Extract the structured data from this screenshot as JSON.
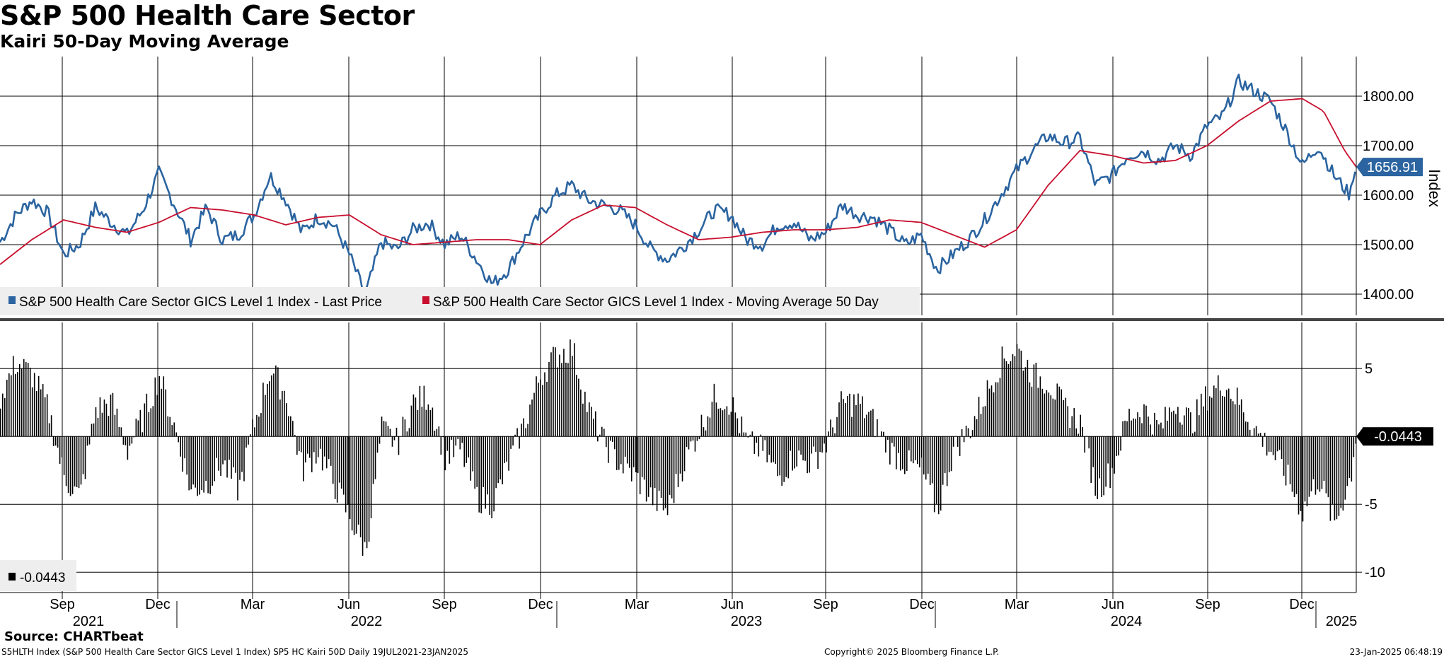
{
  "header": {
    "title": "S&P 500 Health Care Sector",
    "subtitle": "Kairi 50-Day Moving Average"
  },
  "footer": {
    "source": "Source: CHARTbeat",
    "ticker_info": "S5HLTH Index (S&P 500 Health Care Sector GICS Level 1 Index) SP5 HC Kairi 50D  Daily 19JUL2021-23JAN2025",
    "copyright": "Copyright© 2025 Bloomberg Finance L.P.",
    "timestamp": "23-Jan-2025 06:48:19"
  },
  "colors": {
    "price": "#2b64a0",
    "ma": "#c8102e",
    "bars": "#000000",
    "grid": "#000000",
    "label_fill": "#2b64a0"
  },
  "chart_data": [
    {
      "type": "line",
      "title": "S&P 500 Health Care Sector",
      "ylabel": "Index",
      "ylim": [
        1360,
        1880
      ],
      "yticks": [
        1400,
        1500,
        1600,
        1700,
        1800
      ],
      "ytick_labels": [
        "1400.00",
        "1500.00",
        "1600.00",
        "1700.00",
        "1800.00"
      ],
      "x_months": [
        "Sep",
        "Dec",
        "Mar",
        "Jun",
        "Sep",
        "Dec",
        "Mar",
        "Jun",
        "Sep",
        "Dec",
        "Mar",
        "Jun",
        "Sep",
        "Dec"
      ],
      "x_years": [
        "2021",
        "2022",
        "2023",
        "2024",
        "2025"
      ],
      "last_value_label": "1656.91",
      "legend_position": "bottom-left",
      "series": [
        {
          "name": "S&P 500 Health Care Sector GICS Level 1 Index - Last Price",
          "x_days": [
            0,
            15,
            30,
            45,
            60,
            75,
            90,
            105,
            120,
            135,
            150,
            165,
            180,
            195,
            210,
            225,
            240,
            255,
            270,
            285,
            300,
            315,
            330,
            345,
            360,
            375,
            390,
            405,
            420,
            435,
            450,
            465,
            480,
            495,
            510,
            525,
            540,
            555,
            570,
            585,
            600,
            615,
            630,
            645,
            660,
            675,
            690,
            705,
            720,
            735,
            750,
            765,
            780,
            795,
            810,
            825,
            840,
            855,
            870,
            885,
            900,
            915,
            930,
            945,
            960,
            975,
            990,
            1005,
            1020,
            1035,
            1050,
            1065,
            1080,
            1095,
            1110,
            1125,
            1140,
            1155,
            1170,
            1185,
            1200,
            1215,
            1230,
            1245,
            1260,
            1275,
            1281
          ],
          "values": [
            1505,
            1560,
            1590,
            1565,
            1480,
            1500,
            1575,
            1545,
            1520,
            1570,
            1645,
            1580,
            1510,
            1575,
            1510,
            1520,
            1560,
            1640,
            1590,
            1525,
            1555,
            1540,
            1480,
            1398,
            1505,
            1490,
            1530,
            1545,
            1500,
            1520,
            1470,
            1420,
            1450,
            1510,
            1560,
            1600,
            1620,
            1590,
            1580,
            1570,
            1540,
            1490,
            1470,
            1495,
            1530,
            1570,
            1560,
            1510,
            1500,
            1540,
            1545,
            1510,
            1525,
            1580,
            1560,
            1555,
            1530,
            1500,
            1520,
            1450,
            1480,
            1510,
            1550,
            1600,
            1650,
            1690,
            1720,
            1705,
            1715,
            1620,
            1640,
            1680,
            1690,
            1670,
            1700,
            1680,
            1740,
            1760,
            1830,
            1810,
            1790,
            1730,
            1660,
            1700,
            1640,
            1600,
            1656.91
          ]
        },
        {
          "name": "S&P 500 Health Care Sector GICS Level 1 Index - Moving Average 50 Day",
          "x_days": [
            0,
            30,
            60,
            90,
            120,
            150,
            180,
            210,
            240,
            270,
            300,
            330,
            360,
            390,
            420,
            450,
            480,
            510,
            540,
            570,
            600,
            630,
            660,
            690,
            720,
            750,
            780,
            810,
            840,
            870,
            900,
            930,
            960,
            990,
            1020,
            1050,
            1080,
            1110,
            1140,
            1170,
            1200,
            1230,
            1250,
            1270,
            1281
          ],
          "values": [
            1460,
            1510,
            1550,
            1535,
            1525,
            1545,
            1575,
            1570,
            1560,
            1540,
            1555,
            1560,
            1520,
            1500,
            1505,
            1510,
            1510,
            1500,
            1550,
            1580,
            1575,
            1540,
            1510,
            1515,
            1525,
            1530,
            1530,
            1535,
            1550,
            1545,
            1520,
            1495,
            1530,
            1620,
            1690,
            1680,
            1665,
            1670,
            1700,
            1750,
            1790,
            1795,
            1770,
            1690,
            1657
          ]
        }
      ]
    },
    {
      "type": "bar",
      "title": "Kairi 50-Day Moving Average",
      "ylim": [
        -11.5,
        8.5
      ],
      "yticks": [
        -10,
        -5,
        5
      ],
      "ytick_labels": [
        "-10",
        "-5",
        "5"
      ],
      "last_value_label": "-0.0443",
      "legend": "-0.0443",
      "legend_position": "bottom-left",
      "series": [
        {
          "name": "Kairi 50D",
          "x_days": [
            0,
            15,
            30,
            45,
            60,
            75,
            90,
            105,
            120,
            135,
            150,
            165,
            180,
            195,
            210,
            225,
            240,
            255,
            270,
            285,
            300,
            315,
            330,
            345,
            360,
            375,
            390,
            405,
            420,
            435,
            450,
            465,
            480,
            495,
            510,
            525,
            540,
            555,
            570,
            585,
            600,
            615,
            630,
            645,
            660,
            675,
            690,
            705,
            720,
            735,
            750,
            765,
            780,
            795,
            810,
            825,
            840,
            855,
            870,
            885,
            900,
            915,
            930,
            945,
            960,
            975,
            990,
            1005,
            1020,
            1035,
            1050,
            1065,
            1080,
            1095,
            1110,
            1125,
            1140,
            1155,
            1170,
            1185,
            1200,
            1215,
            1230,
            1245,
            1260,
            1275,
            1281
          ],
          "values": [
            3.0,
            5.5,
            4.5,
            2.0,
            -3.0,
            -4.5,
            2.0,
            2.5,
            -1.0,
            1.5,
            4.5,
            0.5,
            -4.0,
            -3.5,
            -2.0,
            -4.0,
            1.0,
            5.0,
            3.0,
            -2.5,
            -1.0,
            -3.5,
            -6.0,
            -8.5,
            0.5,
            -0.5,
            2.5,
            3.0,
            -1.5,
            -1.0,
            -4.5,
            -5.0,
            -2.0,
            1.0,
            4.5,
            6.0,
            6.5,
            2.0,
            -0.5,
            -2.0,
            -3.0,
            -4.5,
            -5.5,
            -2.0,
            0.5,
            3.0,
            2.5,
            -0.5,
            -1.0,
            -3.0,
            -1.5,
            -2.0,
            -0.5,
            2.5,
            2.5,
            1.0,
            -1.0,
            -2.0,
            -2.5,
            -5.5,
            -1.0,
            0.5,
            3.0,
            5.5,
            6.5,
            4.5,
            4.0,
            2.0,
            1.0,
            -4.0,
            -2.5,
            1.5,
            2.0,
            0.5,
            2.5,
            1.0,
            3.0,
            4.0,
            2.5,
            0.5,
            -1.0,
            -3.0,
            -5.5,
            -3.0,
            -6.5,
            -3.0,
            -0.0443
          ]
        }
      ]
    }
  ]
}
